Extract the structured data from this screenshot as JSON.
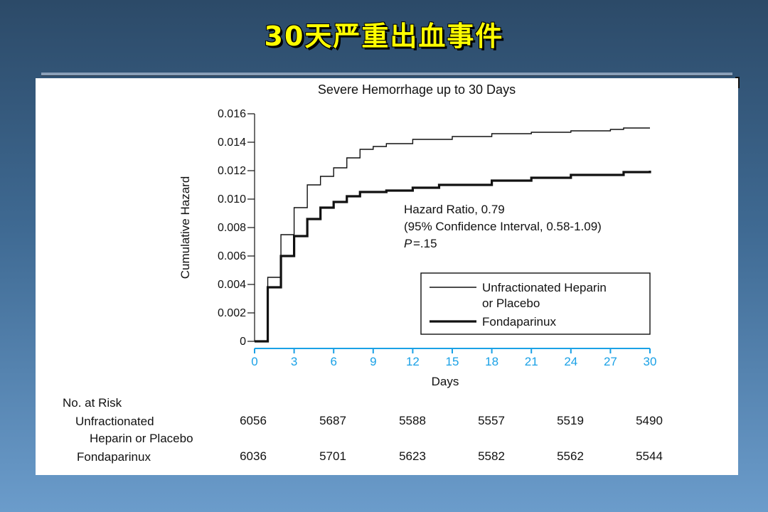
{
  "slide": {
    "title": "30天严重出血事件"
  },
  "colors": {
    "accent_axis": "#1aa1e6",
    "title_yellow": "#ffff00"
  },
  "chart_data": {
    "type": "line",
    "title": "Severe Hemorrhage up to 30 Days",
    "xlabel": "Days",
    "ylabel": "Cumulative Hazard",
    "xlim": [
      0,
      30
    ],
    "ylim": [
      0,
      0.016
    ],
    "x_ticks": [
      "0",
      "3",
      "6",
      "9",
      "12",
      "15",
      "18",
      "21",
      "24",
      "27",
      "30"
    ],
    "y_ticks": [
      "0",
      "0.002",
      "0.004",
      "0.006",
      "0.008",
      "0.010",
      "0.012",
      "0.014",
      "0.016"
    ],
    "step": true,
    "series": [
      {
        "name": "Unfractionated Heparin or Placebo",
        "style": "thin",
        "x": [
          0,
          1,
          2,
          3,
          4,
          5,
          6,
          7,
          8,
          9,
          10,
          12,
          15,
          18,
          21,
          24,
          27,
          28,
          30
        ],
        "y": [
          0,
          0.0045,
          0.0075,
          0.0094,
          0.011,
          0.0116,
          0.0122,
          0.0129,
          0.0135,
          0.0137,
          0.0139,
          0.0142,
          0.0144,
          0.0146,
          0.0147,
          0.0148,
          0.0149,
          0.015,
          0.015
        ]
      },
      {
        "name": "Fondaparinux",
        "style": "thick",
        "x": [
          0,
          1,
          2,
          3,
          4,
          5,
          6,
          7,
          8,
          10,
          12,
          14,
          18,
          21,
          24,
          28,
          30
        ],
        "y": [
          0,
          0.0038,
          0.006,
          0.0074,
          0.0086,
          0.0094,
          0.0098,
          0.0102,
          0.0105,
          0.0106,
          0.0108,
          0.011,
          0.0113,
          0.0115,
          0.0117,
          0.0119,
          0.012
        ]
      }
    ],
    "annotations": [
      "Hazard Ratio, 0.79",
      "(95% Confidence Interval, 0.58-1.09)",
      "P",
      "=.15"
    ],
    "legend": {
      "placement": "bottom-right",
      "entries": [
        "Unfractionated Heparin",
        "or Placebo",
        "Fondaparinux"
      ]
    }
  },
  "risk_table": {
    "header": "No. at Risk",
    "row1_label_a": "Unfractionated",
    "row1_label_b": "Heparin or Placebo",
    "row2_label": "Fondaparinux",
    "row1_values": [
      "6056",
      "5687",
      "5588",
      "5557",
      "5519",
      "5490"
    ],
    "row2_values": [
      "6036",
      "5701",
      "5623",
      "5582",
      "5562",
      "5544"
    ]
  }
}
